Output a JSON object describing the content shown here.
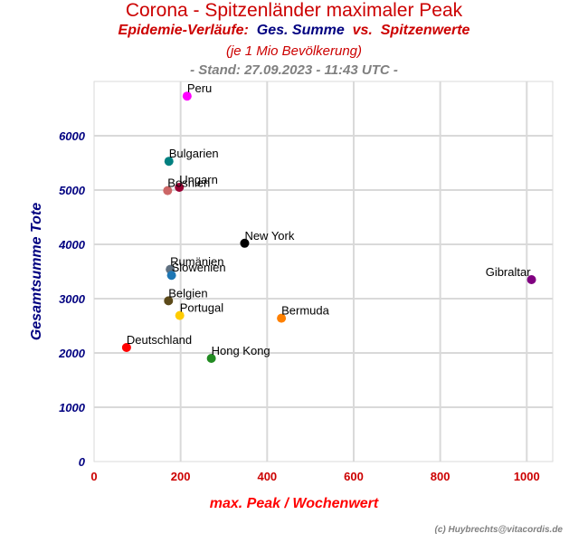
{
  "header": {
    "title": "Corona - Spitzenländer maximaler Peak",
    "subtitle_a": "Epidemie-Verläufe:",
    "subtitle_b": "Ges. Summe",
    "subtitle_c": "vs.",
    "subtitle_d": "Spitzenwerte",
    "subtitle2": "(je 1 Mio Bevölkerung)",
    "stand": "- Stand: 27.09.2023 - 11:43 UTC -",
    "copyright": "(c) Huybrechts@vitacordis.de"
  },
  "chart_data": {
    "type": "scatter",
    "xlabel": "max. Peak / Wochenwert",
    "ylabel": "Gesamtsumme Tote",
    "xlim": [
      0,
      1060
    ],
    "ylim": [
      0,
      7000
    ],
    "xticks": [
      0,
      200,
      400,
      600,
      800,
      1000
    ],
    "yticks": [
      0,
      1000,
      2000,
      3000,
      4000,
      5000,
      6000
    ],
    "grid": true,
    "colors": {
      "x_tick": "#cc0000",
      "y_tick": "#000080",
      "xlabel": "#ff0000",
      "ylabel": "#000080",
      "grid": "#d9d9d9"
    },
    "points": [
      {
        "name": "Peru",
        "x": 215,
        "y": 6730,
        "color": "#ff00ff",
        "label_side": "right",
        "label_dy": -4
      },
      {
        "name": "Bulgarien",
        "x": 173,
        "y": 5530,
        "color": "#008080",
        "label_side": "right",
        "label_dy": -4
      },
      {
        "name": "Ungarn",
        "x": 197,
        "y": 5050,
        "color": "#990033",
        "label_side": "right",
        "label_dy": -4
      },
      {
        "name": "Bosnien",
        "x": 170,
        "y": 4990,
        "color": "#cc6666",
        "label_side": "right",
        "label_dy": -4
      },
      {
        "name": "New York",
        "x": 348,
        "y": 4020,
        "color": "#000000",
        "label_side": "right",
        "label_dy": -4
      },
      {
        "name": "Gibraltar",
        "x": 1011,
        "y": 3350,
        "color": "#800080",
        "label_side": "left",
        "label_dy": -4
      },
      {
        "name": "Rumänien",
        "x": 176,
        "y": 3540,
        "color": "#607080",
        "label_side": "right",
        "label_dy": -4
      },
      {
        "name": "Slowenien",
        "x": 179,
        "y": 3430,
        "color": "#1f77b4",
        "label_side": "right",
        "label_dy": -4
      },
      {
        "name": "Belgien",
        "x": 172,
        "y": 2960,
        "color": "#5c4a1a",
        "label_side": "right",
        "label_dy": -4
      },
      {
        "name": "Portugal",
        "x": 198,
        "y": 2690,
        "color": "#ffcc00",
        "label_side": "right",
        "label_dy": -4
      },
      {
        "name": "Bermuda",
        "x": 433,
        "y": 2640,
        "color": "#ff8000",
        "label_side": "right",
        "label_dy": -4
      },
      {
        "name": "Deutschland",
        "x": 75,
        "y": 2100,
        "color": "#ff0000",
        "label_side": "right",
        "label_dy": -4
      },
      {
        "name": "Hong Kong",
        "x": 271,
        "y": 1900,
        "color": "#228b22",
        "label_side": "right",
        "label_dy": -4
      }
    ]
  }
}
